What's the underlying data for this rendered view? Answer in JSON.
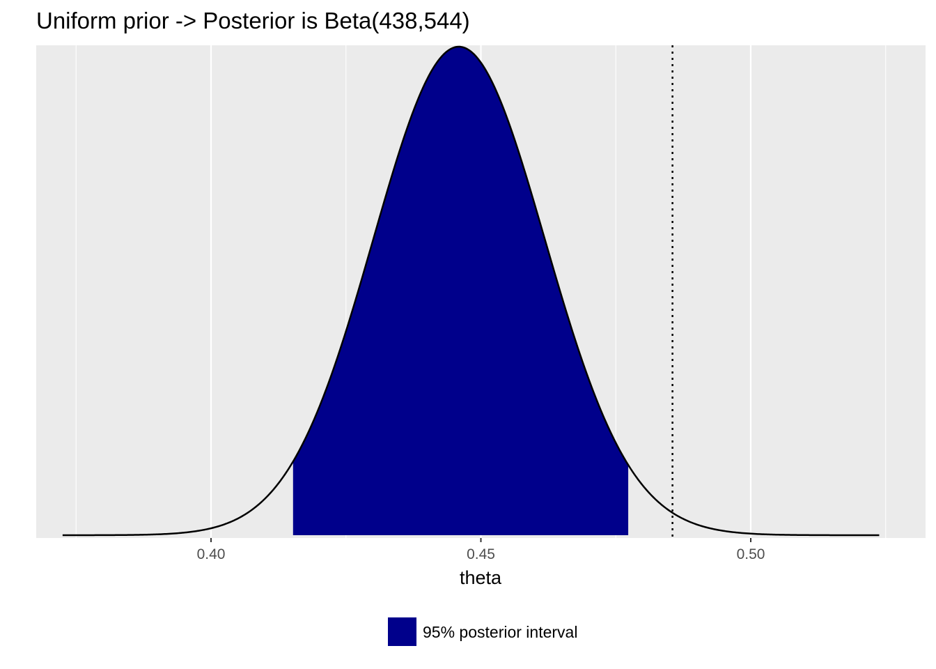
{
  "chart_data": {
    "type": "area",
    "title": "Uniform prior -> Posterior is Beta(438,544)",
    "xlabel": "theta",
    "ylabel": "",
    "distribution": {
      "family": "beta",
      "alpha": 438,
      "beta": 544
    },
    "xlim": [
      0.3725,
      0.5238
    ],
    "x_ticks": [
      {
        "value": 0.4,
        "label": "0.40"
      },
      {
        "value": 0.45,
        "label": "0.45"
      },
      {
        "value": 0.5,
        "label": "0.50"
      }
    ],
    "y_ticks_shown": false,
    "grid": true,
    "shaded_interval": {
      "lower": 0.4152,
      "upper": 0.4773,
      "fill": "#00008b"
    },
    "reference_line": {
      "x": 0.4855,
      "style": "dotted"
    },
    "legend": {
      "position": "bottom",
      "entries": [
        {
          "label": "95% posterior interval",
          "color": "#00008b"
        }
      ]
    },
    "colors": {
      "panel_background": "#ebebeb",
      "grid": "#ffffff",
      "curve": "#000000"
    }
  }
}
